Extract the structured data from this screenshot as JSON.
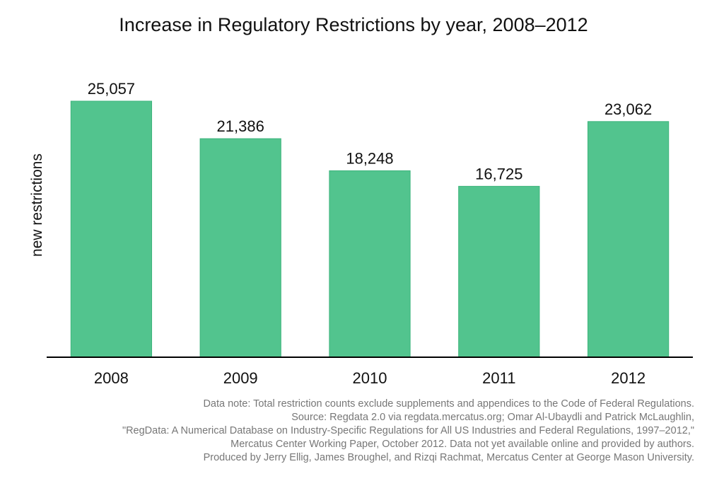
{
  "chart_data": {
    "type": "bar",
    "title": "Increase in Regulatory Restrictions by year, 2008–2012",
    "xlabel": "",
    "ylabel": "new restrictions",
    "categories": [
      "2008",
      "2009",
      "2010",
      "2011",
      "2012"
    ],
    "values": [
      25057,
      21386,
      18248,
      16725,
      23062
    ],
    "value_labels": [
      "25,057",
      "21,386",
      "18,248",
      "16,725",
      "23,062"
    ],
    "ylim": [
      0,
      25057
    ],
    "grid": false,
    "legend": "none",
    "bar_color": "#52c48e",
    "bar_edge_color": "#3db47c",
    "axis_color": "#000000"
  },
  "footnote": {
    "lines": [
      "Data note: Total restriction counts exclude supplements and appendices to the Code of Federal Regulations.",
      "Source: Regdata 2.0 via regdata.mercatus.org; Omar Al-Ubaydli and Patrick McLaughlin,",
      "\"RegData: A Numerical Database on Industry-Specific Regulations for All US Industries and Federal Regulations, 1997–2012,\"",
      "Mercatus Center Working Paper, October 2012. Data not yet available online and provided by authors.",
      "Produced by Jerry Ellig, James Broughel, and Rizqi Rachmat, Mercatus Center at George Mason University."
    ]
  }
}
